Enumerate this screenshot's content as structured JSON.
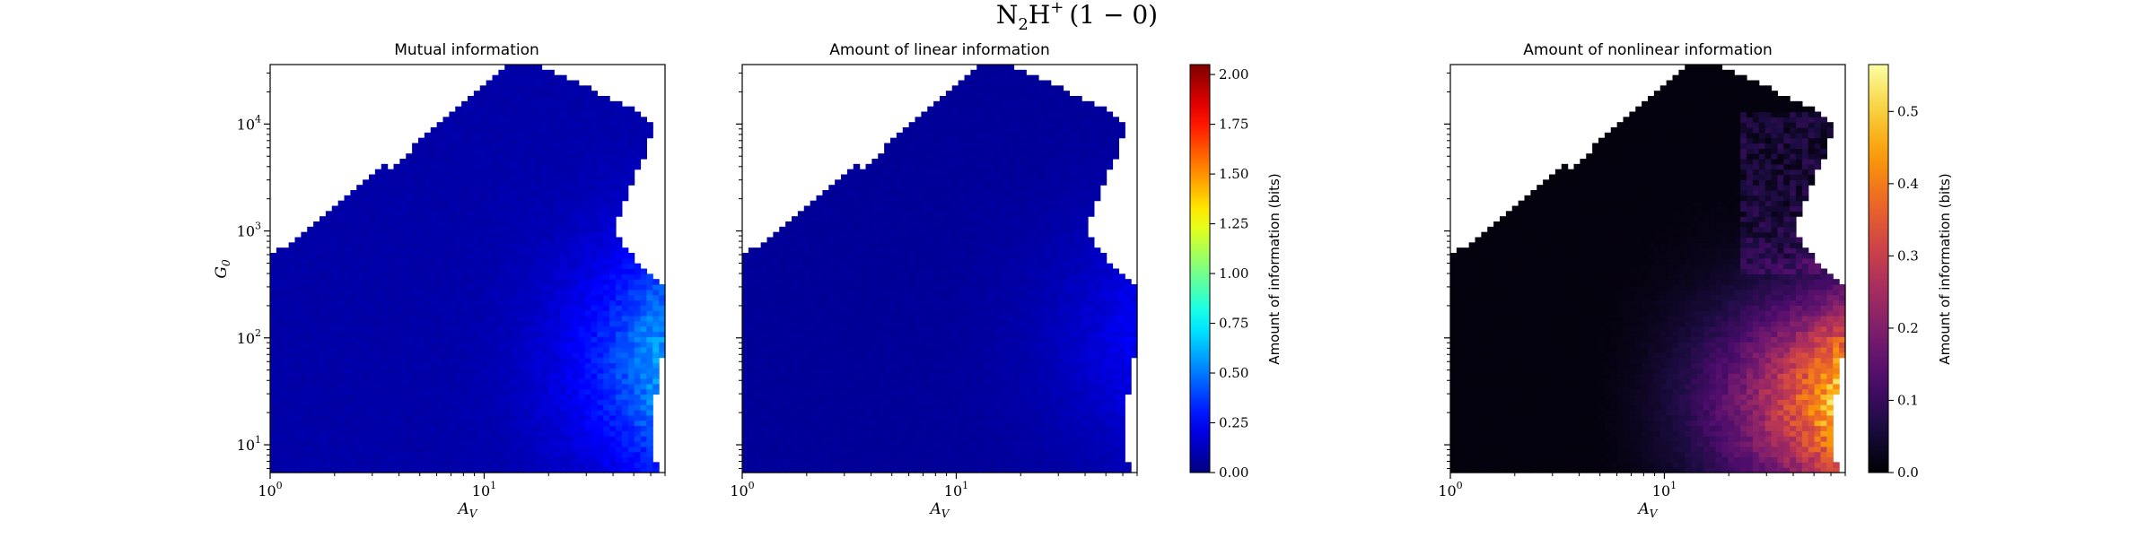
{
  "figure": {
    "suptitle_base": "N",
    "suptitle_sub": "2",
    "suptitle_mid": "H",
    "suptitle_sup": "+",
    "suptitle_tail": "(1 − 0)"
  },
  "axes_common": {
    "xlim": [
      1,
      70
    ],
    "ylim": [
      5.5,
      36000
    ],
    "xscale": "log",
    "yscale": "log",
    "xlabel_base": "A",
    "xlabel_sub": "V",
    "ylabel_base": "G",
    "ylabel_sub": "0",
    "xtick_base": "10",
    "xtick_exps": [
      "0",
      "1"
    ],
    "ytick_base": "10",
    "ytick_exps": [
      "1",
      "2",
      "3",
      "4"
    ]
  },
  "colors": {
    "jet": [
      "#00007f",
      "#0000ff",
      "#007fff",
      "#00ffff",
      "#7fff7f",
      "#ffff00",
      "#ff7f00",
      "#ff0000",
      "#7f0000"
    ],
    "inferno": [
      "#000004",
      "#1b0c41",
      "#4a0c6b",
      "#781c6d",
      "#a52c60",
      "#cf4446",
      "#ed6925",
      "#fb9b06",
      "#f7d13d",
      "#fcffa4"
    ]
  },
  "chart_data": [
    {
      "type": "heatmap",
      "title": "Mutual information",
      "colormap": "jet",
      "vmin": 0,
      "vmax": 2.05,
      "base_value": 0.08,
      "max_value": 0.55,
      "peak_region": {
        "av": 60,
        "g0": 60
      }
    },
    {
      "type": "heatmap",
      "title": "Amount of linear information",
      "colormap": "jet",
      "vmin": 0,
      "vmax": 2.05,
      "base_value": 0.05,
      "max_value": 0.22,
      "peak_region": {
        "av": 60,
        "g0": 100
      }
    },
    {
      "type": "heatmap",
      "title": "Amount of nonlinear information",
      "colormap": "inferno",
      "vmin": 0,
      "vmax": 0.565,
      "base_value": 0.01,
      "max_value": 0.5,
      "peak_region": {
        "av": 65,
        "g0": 25
      }
    }
  ],
  "colorbars": [
    {
      "label": "Amount of information (bits)",
      "colormap": "jet",
      "vmin": 0,
      "vmax": 2.05,
      "ticks": [
        "0.00",
        "0.25",
        "0.50",
        "0.75",
        "1.00",
        "1.25",
        "1.50",
        "1.75",
        "2.00"
      ],
      "tick_values": [
        0,
        0.25,
        0.5,
        0.75,
        1.0,
        1.25,
        1.5,
        1.75,
        2.0
      ]
    },
    {
      "label": "Amount of information (bits)",
      "colormap": "inferno",
      "vmin": 0,
      "vmax": 0.565,
      "ticks": [
        "0.0",
        "0.1",
        "0.2",
        "0.3",
        "0.4",
        "0.5"
      ],
      "tick_values": [
        0,
        0.1,
        0.2,
        0.3,
        0.4,
        0.5
      ]
    }
  ]
}
